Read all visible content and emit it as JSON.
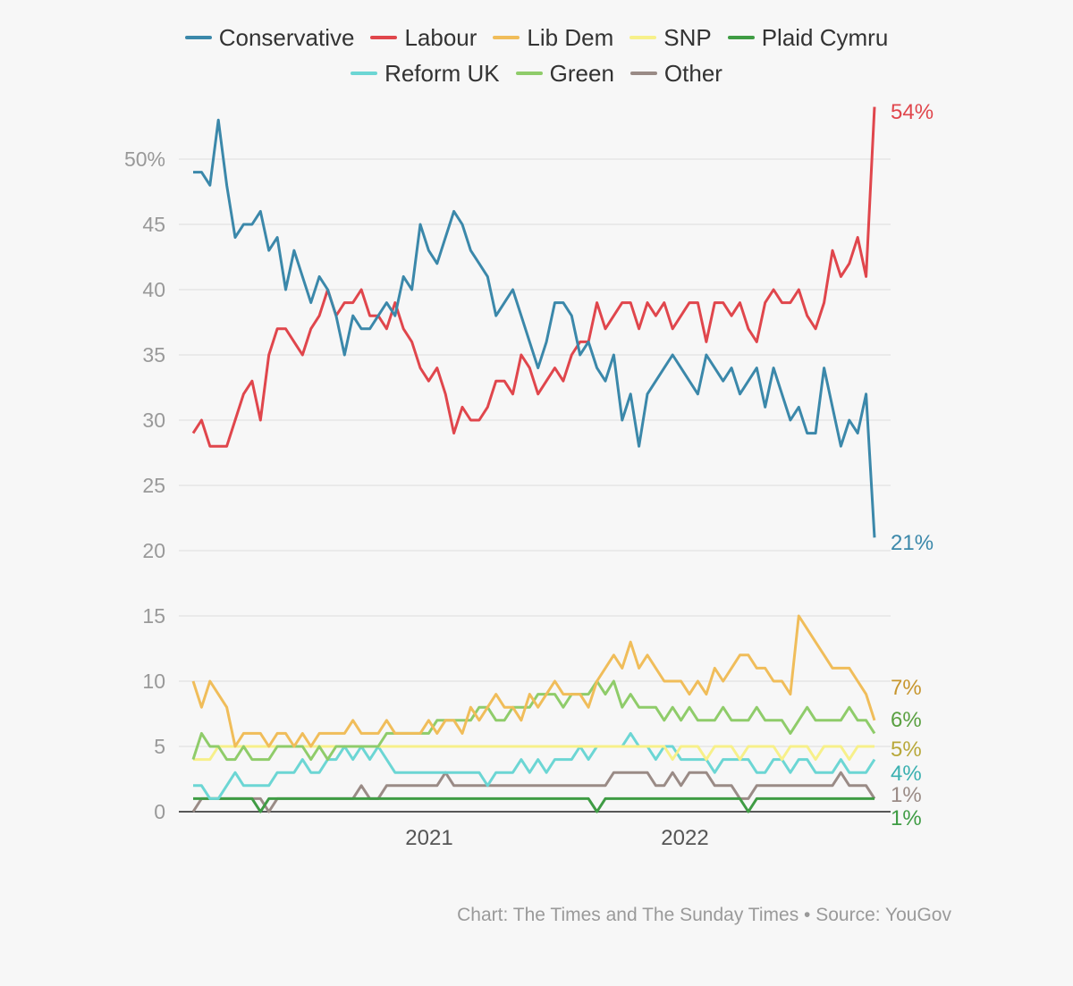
{
  "colors": {
    "Conservative": "#3b88aa",
    "Labour": "#e0464c",
    "Lib Dem": "#f0bd5a",
    "SNP": "#f7f08a",
    "Plaid Cymru": "#3f9c44",
    "Reform UK": "#6cd6d4",
    "Green": "#8fcc6a",
    "Other": "#9a8b86",
    "grid": "#dddddd",
    "axis_text": "#999999"
  },
  "legend_rows": [
    [
      "Conservative",
      "Labour",
      "Lib Dem",
      "SNP",
      "Plaid Cymru"
    ],
    [
      "Reform UK",
      "Green",
      "Other"
    ]
  ],
  "source_text": "Chart: The Times and The Sunday Times • Source: YouGov",
  "chart_data": {
    "type": "line",
    "title": "",
    "xlabel": "",
    "ylabel": "",
    "x_ticks": [
      "2021",
      "2022"
    ],
    "y_ticks": [
      "0",
      "5",
      "10",
      "15",
      "20",
      "25",
      "30",
      "35",
      "40",
      "45",
      "50%"
    ],
    "ylim": [
      0,
      55
    ],
    "grid": true,
    "end_labels": [
      {
        "series": "Labour",
        "label": "54%",
        "value": 54
      },
      {
        "series": "Conservative",
        "label": "21%",
        "value": 21
      },
      {
        "series": "Lib Dem",
        "label": "7%",
        "value": 7
      },
      {
        "series": "Green",
        "label": "6%",
        "value": 6
      },
      {
        "series": "SNP",
        "label": "5%",
        "value": 5
      },
      {
        "series": "Reform UK",
        "label": "4%",
        "value": 4
      },
      {
        "series": "Other",
        "label": "1%",
        "value": 1
      },
      {
        "series": "Plaid Cymru",
        "label": "1%",
        "value": 1
      }
    ],
    "series": [
      {
        "name": "Conservative",
        "values": [
          49,
          49,
          48,
          53,
          48,
          44,
          45,
          45,
          46,
          43,
          44,
          40,
          43,
          41,
          39,
          41,
          40,
          38,
          35,
          38,
          37,
          37,
          38,
          39,
          38,
          41,
          40,
          45,
          43,
          42,
          44,
          46,
          45,
          43,
          42,
          41,
          38,
          39,
          40,
          38,
          36,
          34,
          36,
          39,
          39,
          38,
          35,
          36,
          34,
          33,
          35,
          30,
          32,
          28,
          32,
          33,
          34,
          35,
          34,
          33,
          32,
          35,
          34,
          33,
          34,
          32,
          33,
          34,
          31,
          34,
          32,
          30,
          31,
          29,
          29,
          34,
          31,
          28,
          30,
          29,
          32,
          21
        ]
      },
      {
        "name": "Labour",
        "values": [
          29,
          30,
          28,
          28,
          28,
          30,
          32,
          33,
          30,
          35,
          37,
          37,
          36,
          35,
          37,
          38,
          40,
          38,
          39,
          39,
          40,
          38,
          38,
          37,
          39,
          37,
          36,
          34,
          33,
          34,
          32,
          29,
          31,
          30,
          30,
          31,
          33,
          33,
          32,
          35,
          34,
          32,
          33,
          34,
          33,
          35,
          36,
          36,
          39,
          37,
          38,
          39,
          39,
          37,
          39,
          38,
          39,
          37,
          38,
          39,
          39,
          36,
          39,
          39,
          38,
          39,
          37,
          36,
          39,
          40,
          39,
          39,
          40,
          38,
          37,
          39,
          43,
          41,
          42,
          44,
          41,
          54
        ]
      },
      {
        "name": "Lib Dem",
        "values": [
          10,
          8,
          10,
          9,
          8,
          5,
          6,
          6,
          6,
          5,
          6,
          6,
          5,
          6,
          5,
          6,
          6,
          6,
          6,
          7,
          6,
          6,
          6,
          7,
          6,
          6,
          6,
          6,
          7,
          6,
          7,
          7,
          6,
          8,
          7,
          8,
          9,
          8,
          8,
          7,
          9,
          8,
          9,
          10,
          9,
          9,
          9,
          8,
          10,
          11,
          12,
          11,
          13,
          11,
          12,
          11,
          10,
          10,
          10,
          9,
          10,
          9,
          11,
          10,
          11,
          12,
          12,
          11,
          11,
          10,
          10,
          9,
          15,
          14,
          13,
          12,
          11,
          11,
          11,
          10,
          9,
          7
        ]
      },
      {
        "name": "SNP",
        "values": [
          4,
          4,
          4,
          5,
          5,
          5,
          5,
          5,
          5,
          5,
          5,
          5,
          5,
          5,
          5,
          5,
          5,
          5,
          5,
          5,
          5,
          5,
          5,
          5,
          5,
          5,
          5,
          5,
          5,
          5,
          5,
          5,
          5,
          5,
          5,
          5,
          5,
          5,
          5,
          5,
          5,
          5,
          5,
          5,
          5,
          5,
          5,
          5,
          5,
          5,
          5,
          5,
          5,
          5,
          5,
          5,
          5,
          4,
          5,
          5,
          5,
          4,
          5,
          5,
          5,
          4,
          5,
          5,
          5,
          5,
          4,
          5,
          5,
          5,
          4,
          5,
          5,
          5,
          4,
          5,
          5,
          5
        ]
      },
      {
        "name": "Plaid Cymru",
        "values": [
          1,
          1,
          1,
          1,
          1,
          1,
          1,
          1,
          0,
          1,
          1,
          1,
          1,
          1,
          1,
          1,
          1,
          1,
          1,
          1,
          1,
          1,
          1,
          1,
          1,
          1,
          1,
          1,
          1,
          1,
          1,
          1,
          1,
          1,
          1,
          1,
          1,
          1,
          1,
          1,
          1,
          1,
          1,
          1,
          1,
          1,
          1,
          1,
          0,
          1,
          1,
          1,
          1,
          1,
          1,
          1,
          1,
          1,
          1,
          1,
          1,
          1,
          1,
          1,
          1,
          1,
          0,
          1,
          1,
          1,
          1,
          1,
          1,
          1,
          1,
          1,
          1,
          1,
          1,
          1,
          1,
          1
        ]
      },
      {
        "name": "Reform UK",
        "values": [
          2,
          2,
          1,
          1,
          2,
          3,
          2,
          2,
          2,
          2,
          3,
          3,
          3,
          4,
          3,
          3,
          4,
          4,
          5,
          4,
          5,
          4,
          5,
          4,
          3,
          3,
          3,
          3,
          3,
          3,
          3,
          3,
          3,
          3,
          3,
          2,
          3,
          3,
          3,
          4,
          3,
          4,
          3,
          4,
          4,
          4,
          5,
          4,
          5,
          5,
          5,
          5,
          6,
          5,
          5,
          4,
          5,
          5,
          4,
          4,
          4,
          4,
          3,
          4,
          4,
          4,
          4,
          3,
          3,
          4,
          4,
          3,
          4,
          4,
          3,
          3,
          3,
          4,
          3,
          3,
          3,
          4
        ]
      },
      {
        "name": "Green",
        "values": [
          4,
          6,
          5,
          5,
          4,
          4,
          5,
          4,
          4,
          4,
          5,
          5,
          5,
          5,
          4,
          5,
          4,
          5,
          5,
          5,
          5,
          5,
          5,
          6,
          6,
          6,
          6,
          6,
          6,
          7,
          7,
          7,
          7,
          7,
          8,
          8,
          7,
          7,
          8,
          8,
          8,
          9,
          9,
          9,
          8,
          9,
          9,
          9,
          10,
          9,
          10,
          8,
          9,
          8,
          8,
          8,
          7,
          8,
          7,
          8,
          7,
          7,
          7,
          8,
          7,
          7,
          7,
          8,
          7,
          7,
          7,
          6,
          7,
          8,
          7,
          7,
          7,
          7,
          8,
          7,
          7,
          6
        ]
      },
      {
        "name": "Other",
        "values": [
          0,
          1,
          1,
          1,
          1,
          1,
          1,
          1,
          1,
          0,
          1,
          1,
          1,
          1,
          1,
          1,
          1,
          1,
          1,
          1,
          2,
          1,
          1,
          2,
          2,
          2,
          2,
          2,
          2,
          2,
          3,
          2,
          2,
          2,
          2,
          2,
          2,
          2,
          2,
          2,
          2,
          2,
          2,
          2,
          2,
          2,
          2,
          2,
          2,
          2,
          3,
          3,
          3,
          3,
          3,
          2,
          2,
          3,
          2,
          3,
          3,
          3,
          2,
          2,
          2,
          1,
          1,
          2,
          2,
          2,
          2,
          2,
          2,
          2,
          2,
          2,
          2,
          3,
          2,
          2,
          2,
          1
        ]
      }
    ]
  }
}
